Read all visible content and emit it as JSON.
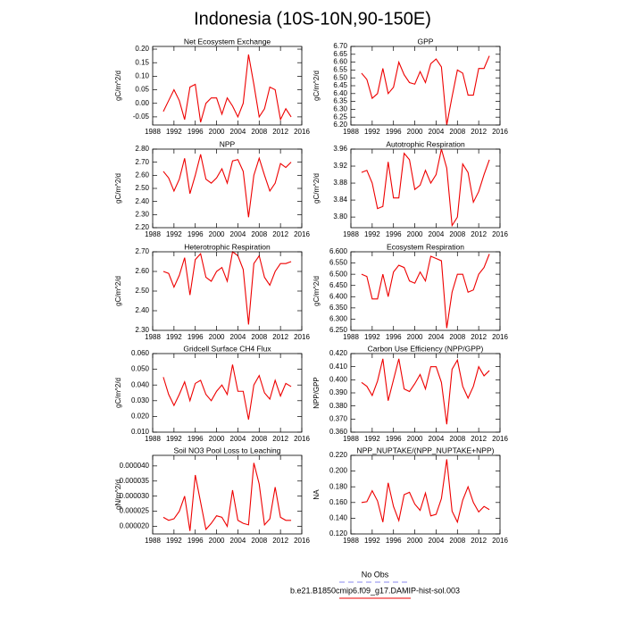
{
  "title": "Indonesia (10S-10N,90-150E)",
  "legend": [
    {
      "name": "No Obs",
      "color": "#8888ee",
      "dash": true
    },
    {
      "name": "b.e21.B1850cmip6.f09_g17.DAMIP-hist-sol.003",
      "color": "#ee0000",
      "dash": false
    }
  ],
  "chart_data": [
    {
      "type": "line",
      "title": "Net Ecosystem Exchange",
      "y_label": "gC/m^2/d",
      "x": [
        1990,
        1991,
        1992,
        1993,
        1994,
        1995,
        1996,
        1997,
        1998,
        1999,
        2000,
        2001,
        2002,
        2003,
        2004,
        2005,
        2006,
        2007,
        2008,
        2009,
        2010,
        2011,
        2012,
        2013,
        2014
      ],
      "xlim": [
        1988,
        2016
      ],
      "xticks": [
        1988,
        1992,
        1996,
        2000,
        2004,
        2008,
        2012,
        2016
      ],
      "ylim": [
        -0.08,
        0.21
      ],
      "yticks": [
        {
          "value": -0.05,
          "label": "-0.05"
        },
        {
          "value": 0,
          "label": "0.00"
        },
        {
          "value": 0.05,
          "label": "0.05"
        },
        {
          "value": 0.1,
          "label": "0.10"
        },
        {
          "value": 0.15,
          "label": "0.15"
        },
        {
          "value": 0.2,
          "label": "0.20"
        }
      ],
      "series": [
        {
          "color": "#ee0000",
          "values": [
            -0.03,
            0.01,
            0.05,
            0.01,
            -0.06,
            0.06,
            0.07,
            -0.07,
            0.0,
            0.02,
            0.02,
            -0.04,
            0.02,
            -0.01,
            -0.05,
            0.0,
            0.18,
            0.07,
            -0.05,
            -0.02,
            0.06,
            0.05,
            -0.06,
            -0.02,
            -0.05
          ]
        }
      ]
    },
    {
      "type": "line",
      "title": "GPP",
      "y_label": "gC/m^2/d",
      "x": [
        1990,
        1991,
        1992,
        1993,
        1994,
        1995,
        1996,
        1997,
        1998,
        1999,
        2000,
        2001,
        2002,
        2003,
        2004,
        2005,
        2006,
        2007,
        2008,
        2009,
        2010,
        2011,
        2012,
        2013,
        2014
      ],
      "xlim": [
        1988,
        2016
      ],
      "xticks": [
        1988,
        1992,
        1996,
        2000,
        2004,
        2008,
        2012,
        2016
      ],
      "ylim": [
        6.2,
        6.7
      ],
      "yticks": [
        {
          "value": 6.2,
          "label": "6.20"
        },
        {
          "value": 6.25,
          "label": "6.25"
        },
        {
          "value": 6.3,
          "label": "6.30"
        },
        {
          "value": 6.35,
          "label": "6.35"
        },
        {
          "value": 6.4,
          "label": "6.40"
        },
        {
          "value": 6.45,
          "label": "6.45"
        },
        {
          "value": 6.5,
          "label": "6.50"
        },
        {
          "value": 6.55,
          "label": "6.55"
        },
        {
          "value": 6.6,
          "label": "6.60"
        },
        {
          "value": 6.65,
          "label": "6.65"
        },
        {
          "value": 6.7,
          "label": "6.70"
        }
      ],
      "series": [
        {
          "color": "#ee0000",
          "values": [
            6.53,
            6.49,
            6.37,
            6.4,
            6.56,
            6.4,
            6.44,
            6.6,
            6.52,
            6.47,
            6.46,
            6.54,
            6.47,
            6.59,
            6.62,
            6.57,
            6.2,
            6.38,
            6.55,
            6.53,
            6.39,
            6.39,
            6.56,
            6.56,
            6.64
          ]
        }
      ]
    },
    {
      "type": "line",
      "title": "NPP",
      "y_label": "gC/m^2/d",
      "x": [
        1990,
        1991,
        1992,
        1993,
        1994,
        1995,
        1996,
        1997,
        1998,
        1999,
        2000,
        2001,
        2002,
        2003,
        2004,
        2005,
        2006,
        2007,
        2008,
        2009,
        2010,
        2011,
        2012,
        2013,
        2014
      ],
      "xlim": [
        1988,
        2016
      ],
      "xticks": [
        1988,
        1992,
        1996,
        2000,
        2004,
        2008,
        2012,
        2016
      ],
      "ylim": [
        2.2,
        2.8
      ],
      "yticks": [
        {
          "value": 2.2,
          "label": "2.20"
        },
        {
          "value": 2.3,
          "label": "2.30"
        },
        {
          "value": 2.4,
          "label": "2.40"
        },
        {
          "value": 2.5,
          "label": "2.50"
        },
        {
          "value": 2.6,
          "label": "2.60"
        },
        {
          "value": 2.7,
          "label": "2.70"
        },
        {
          "value": 2.8,
          "label": "2.80"
        }
      ],
      "series": [
        {
          "color": "#ee0000",
          "values": [
            2.63,
            2.58,
            2.48,
            2.57,
            2.73,
            2.46,
            2.6,
            2.76,
            2.57,
            2.54,
            2.58,
            2.65,
            2.54,
            2.71,
            2.72,
            2.63,
            2.28,
            2.6,
            2.73,
            2.6,
            2.48,
            2.54,
            2.69,
            2.66,
            2.7
          ]
        }
      ]
    },
    {
      "type": "line",
      "title": "Autotrophic Respiration",
      "y_label": "gC/m^2/d",
      "x": [
        1990,
        1991,
        1992,
        1993,
        1994,
        1995,
        1996,
        1997,
        1998,
        1999,
        2000,
        2001,
        2002,
        2003,
        2004,
        2005,
        2006,
        2007,
        2008,
        2009,
        2010,
        2011,
        2012,
        2013,
        2014
      ],
      "xlim": [
        1988,
        2016
      ],
      "xticks": [
        1988,
        1992,
        1996,
        2000,
        2004,
        2008,
        2012,
        2016
      ],
      "ylim": [
        3.775,
        3.96
      ],
      "yticks": [
        {
          "value": 3.8,
          "label": "3.80"
        },
        {
          "value": 3.84,
          "label": "3.84"
        },
        {
          "value": 3.88,
          "label": "3.88"
        },
        {
          "value": 3.92,
          "label": "3.92"
        },
        {
          "value": 3.96,
          "label": "3.96"
        }
      ],
      "series": [
        {
          "color": "#ee0000",
          "values": [
            3.905,
            3.91,
            3.88,
            3.82,
            3.825,
            3.93,
            3.845,
            3.845,
            3.95,
            3.935,
            3.865,
            3.875,
            3.91,
            3.88,
            3.9,
            3.96,
            3.915,
            3.78,
            3.8,
            3.925,
            3.905,
            3.835,
            3.86,
            3.9,
            3.935
          ]
        }
      ]
    },
    {
      "type": "line",
      "title": "Heterotrophic Respiration",
      "y_label": "gC/m^2/d",
      "x": [
        1990,
        1991,
        1992,
        1993,
        1994,
        1995,
        1996,
        1997,
        1998,
        1999,
        2000,
        2001,
        2002,
        2003,
        2004,
        2005,
        2006,
        2007,
        2008,
        2009,
        2010,
        2011,
        2012,
        2013,
        2014
      ],
      "xlim": [
        1988,
        2016
      ],
      "xticks": [
        1988,
        1992,
        1996,
        2000,
        2004,
        2008,
        2012,
        2016
      ],
      "ylim": [
        2.3,
        2.7
      ],
      "yticks": [
        {
          "value": 2.3,
          "label": "2.30"
        },
        {
          "value": 2.4,
          "label": "2.40"
        },
        {
          "value": 2.5,
          "label": "2.50"
        },
        {
          "value": 2.6,
          "label": "2.60"
        },
        {
          "value": 2.7,
          "label": "2.70"
        }
      ],
      "series": [
        {
          "color": "#ee0000",
          "values": [
            2.6,
            2.59,
            2.52,
            2.58,
            2.67,
            2.48,
            2.66,
            2.69,
            2.57,
            2.55,
            2.6,
            2.62,
            2.55,
            2.7,
            2.68,
            2.61,
            2.33,
            2.64,
            2.68,
            2.57,
            2.53,
            2.6,
            2.64,
            2.64,
            2.65
          ]
        }
      ]
    },
    {
      "type": "line",
      "title": "Ecosystem Respiration",
      "y_label": "gC/m^2/d",
      "x": [
        1990,
        1991,
        1992,
        1993,
        1994,
        1995,
        1996,
        1997,
        1998,
        1999,
        2000,
        2001,
        2002,
        2003,
        2004,
        2005,
        2006,
        2007,
        2008,
        2009,
        2010,
        2011,
        2012,
        2013,
        2014
      ],
      "xlim": [
        1988,
        2016
      ],
      "xticks": [
        1988,
        1992,
        1996,
        2000,
        2004,
        2008,
        2012,
        2016
      ],
      "ylim": [
        6.25,
        6.6
      ],
      "yticks": [
        {
          "value": 6.25,
          "label": "6.250"
        },
        {
          "value": 6.3,
          "label": "6.300"
        },
        {
          "value": 6.35,
          "label": "6.350"
        },
        {
          "value": 6.4,
          "label": "6.400"
        },
        {
          "value": 6.45,
          "label": "6.450"
        },
        {
          "value": 6.5,
          "label": "6.500"
        },
        {
          "value": 6.55,
          "label": "6.550"
        },
        {
          "value": 6.6,
          "label": "6.600"
        }
      ],
      "series": [
        {
          "color": "#ee0000",
          "values": [
            6.5,
            6.49,
            6.39,
            6.39,
            6.5,
            6.4,
            6.51,
            6.54,
            6.53,
            6.47,
            6.46,
            6.51,
            6.47,
            6.58,
            6.57,
            6.56,
            6.26,
            6.42,
            6.5,
            6.5,
            6.42,
            6.43,
            6.5,
            6.53,
            6.59
          ]
        }
      ]
    },
    {
      "type": "line",
      "title": "Gridcell Surface CH4 Flux",
      "y_label": "gC/m^2/d",
      "x": [
        1990,
        1991,
        1992,
        1993,
        1994,
        1995,
        1996,
        1997,
        1998,
        1999,
        2000,
        2001,
        2002,
        2003,
        2004,
        2005,
        2006,
        2007,
        2008,
        2009,
        2010,
        2011,
        2012,
        2013,
        2014
      ],
      "xlim": [
        1988,
        2016
      ],
      "xticks": [
        1988,
        1992,
        1996,
        2000,
        2004,
        2008,
        2012,
        2016
      ],
      "ylim": [
        0.01,
        0.06
      ],
      "yticks": [
        {
          "value": 0.01,
          "label": "0.010"
        },
        {
          "value": 0.02,
          "label": "0.020"
        },
        {
          "value": 0.03,
          "label": "0.030"
        },
        {
          "value": 0.04,
          "label": "0.040"
        },
        {
          "value": 0.05,
          "label": "0.050"
        },
        {
          "value": 0.06,
          "label": "0.060"
        }
      ],
      "series": [
        {
          "color": "#ee0000",
          "values": [
            0.045,
            0.034,
            0.027,
            0.034,
            0.042,
            0.03,
            0.041,
            0.043,
            0.034,
            0.03,
            0.036,
            0.04,
            0.034,
            0.053,
            0.036,
            0.036,
            0.018,
            0.04,
            0.046,
            0.035,
            0.031,
            0.043,
            0.033,
            0.041,
            0.039
          ]
        }
      ]
    },
    {
      "type": "line",
      "title": "Carbon Use Efficiency (NPP/GPP)",
      "y_label": "NPP/GPP",
      "x": [
        1990,
        1991,
        1992,
        1993,
        1994,
        1995,
        1996,
        1997,
        1998,
        1999,
        2000,
        2001,
        2002,
        2003,
        2004,
        2005,
        2006,
        2007,
        2008,
        2009,
        2010,
        2011,
        2012,
        2013,
        2014
      ],
      "xlim": [
        1988,
        2016
      ],
      "xticks": [
        1988,
        1992,
        1996,
        2000,
        2004,
        2008,
        2012,
        2016
      ],
      "ylim": [
        0.36,
        0.42
      ],
      "yticks": [
        {
          "value": 0.36,
          "label": "0.360"
        },
        {
          "value": 0.37,
          "label": "0.370"
        },
        {
          "value": 0.38,
          "label": "0.380"
        },
        {
          "value": 0.39,
          "label": "0.390"
        },
        {
          "value": 0.4,
          "label": "0.400"
        },
        {
          "value": 0.41,
          "label": "0.410"
        },
        {
          "value": 0.42,
          "label": "0.420"
        }
      ],
      "series": [
        {
          "color": "#ee0000",
          "values": [
            0.398,
            0.395,
            0.388,
            0.399,
            0.416,
            0.384,
            0.4,
            0.416,
            0.393,
            0.391,
            0.397,
            0.404,
            0.393,
            0.41,
            0.41,
            0.398,
            0.366,
            0.408,
            0.415,
            0.395,
            0.386,
            0.395,
            0.41,
            0.403,
            0.407
          ]
        }
      ]
    },
    {
      "type": "line",
      "title": "Soil NO3 Pool Loss to Leaching",
      "y_label": "gN/m^2/d",
      "x": [
        1990,
        1991,
        1992,
        1993,
        1994,
        1995,
        1996,
        1997,
        1998,
        1999,
        2000,
        2001,
        2002,
        2003,
        2004,
        2005,
        2006,
        2007,
        2008,
        2009,
        2010,
        2011,
        2012,
        2013,
        2014
      ],
      "xlim": [
        1988,
        2016
      ],
      "xticks": [
        1988,
        1992,
        1996,
        2000,
        2004,
        2008,
        2012,
        2016
      ],
      "ylim": [
        1.75e-05,
        4.35e-05
      ],
      "yticks": [
        {
          "value": 2e-05,
          "label": "0.000020"
        },
        {
          "value": 2.5e-05,
          "label": "0.000025"
        },
        {
          "value": 3e-05,
          "label": "0.000030"
        },
        {
          "value": 3.5e-05,
          "label": "0.000035"
        },
        {
          "value": 4e-05,
          "label": "0.000040"
        }
      ],
      "series": [
        {
          "color": "#ee0000",
          "values": [
            2.3e-05,
            2.2e-05,
            2.25e-05,
            2.5e-05,
            3e-05,
            1.85e-05,
            3.7e-05,
            2.8e-05,
            1.9e-05,
            2.1e-05,
            2.35e-05,
            2.3e-05,
            2e-05,
            3.2e-05,
            2.2e-05,
            2.1e-05,
            2.05e-05,
            4.1e-05,
            3.4e-05,
            2.05e-05,
            2.25e-05,
            3.3e-05,
            2.3e-05,
            2.2e-05,
            2.2e-05
          ]
        }
      ]
    },
    {
      "type": "line",
      "title": "NPP_NUPTAKE/(NPP_NUPTAKE+NPP)",
      "y_label": "NA",
      "x": [
        1990,
        1991,
        1992,
        1993,
        1994,
        1995,
        1996,
        1997,
        1998,
        1999,
        2000,
        2001,
        2002,
        2003,
        2004,
        2005,
        2006,
        2007,
        2008,
        2009,
        2010,
        2011,
        2012,
        2013,
        2014
      ],
      "xlim": [
        1988,
        2016
      ],
      "xticks": [
        1988,
        1992,
        1996,
        2000,
        2004,
        2008,
        2012,
        2016
      ],
      "ylim": [
        0.12,
        0.22
      ],
      "yticks": [
        {
          "value": 0.12,
          "label": "0.120"
        },
        {
          "value": 0.14,
          "label": "0.140"
        },
        {
          "value": 0.16,
          "label": "0.160"
        },
        {
          "value": 0.18,
          "label": "0.180"
        },
        {
          "value": 0.2,
          "label": "0.200"
        },
        {
          "value": 0.22,
          "label": "0.220"
        }
      ],
      "series": [
        {
          "color": "#ee0000",
          "values": [
            0.16,
            0.161,
            0.175,
            0.162,
            0.135,
            0.185,
            0.155,
            0.137,
            0.17,
            0.173,
            0.158,
            0.15,
            0.172,
            0.143,
            0.145,
            0.165,
            0.215,
            0.149,
            0.135,
            0.163,
            0.18,
            0.16,
            0.148,
            0.155,
            0.151
          ]
        }
      ]
    }
  ]
}
